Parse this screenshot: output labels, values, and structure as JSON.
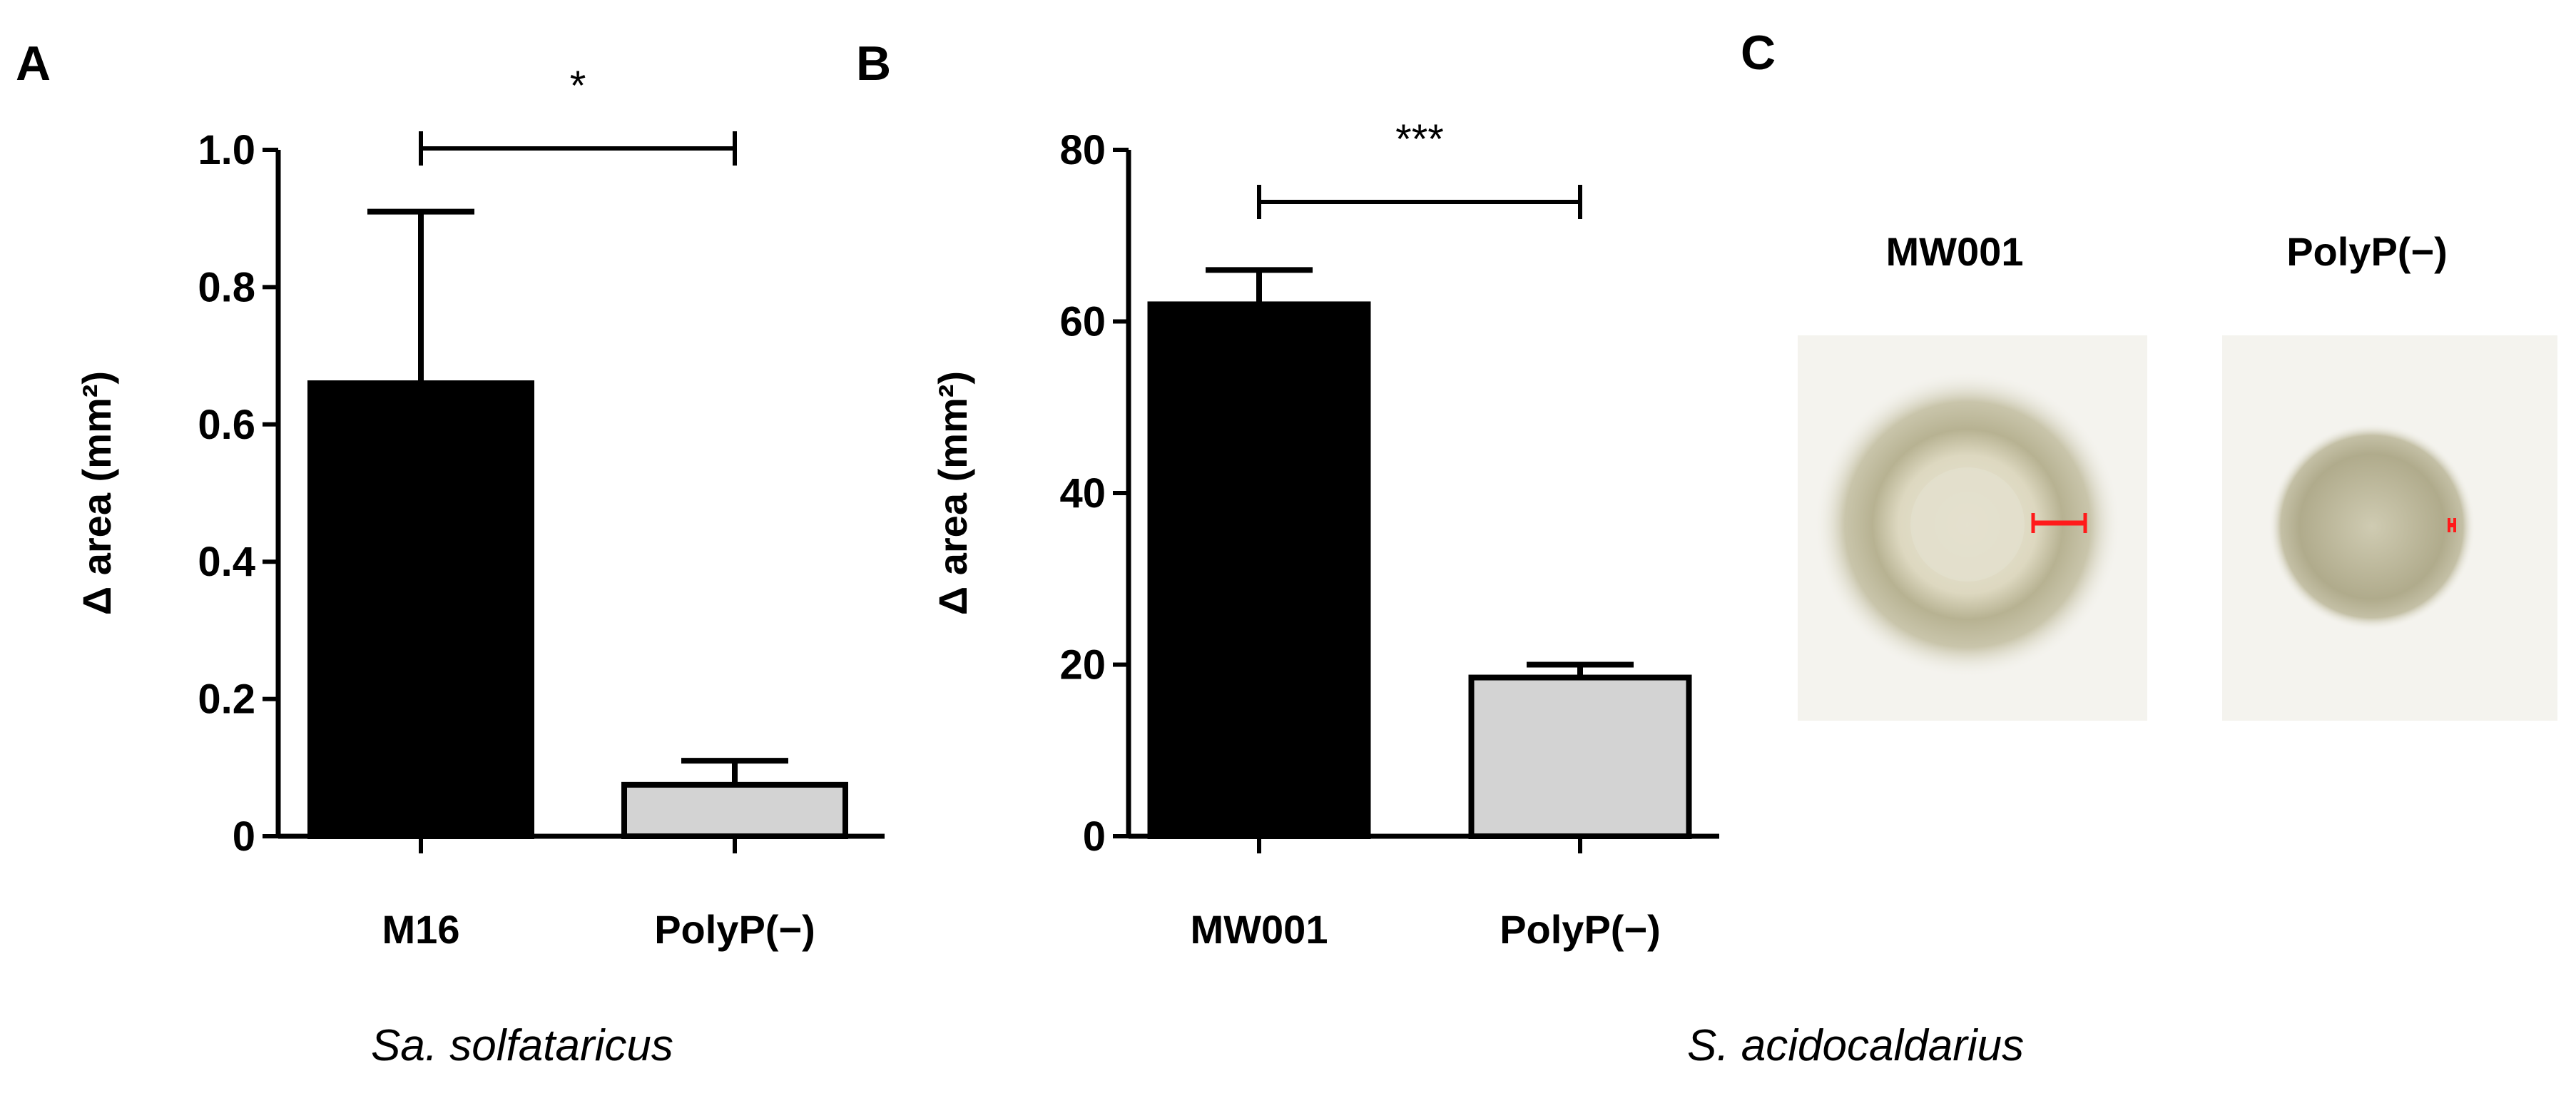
{
  "panels": {
    "a": {
      "letter": "A",
      "organism": "Sa. solfataricus"
    },
    "b": {
      "letter": "B",
      "organism": "S. acidocaldarius"
    },
    "c": {
      "letter": "C",
      "images": [
        {
          "label": "MW001"
        },
        {
          "label": "PolyP(−)"
        }
      ]
    }
  },
  "chart_data": [
    {
      "type": "bar",
      "panel": "A",
      "categories": [
        "M16",
        "PolyP(−)"
      ],
      "values": [
        0.66,
        0.075
      ],
      "error_upper": [
        0.91,
        0.11
      ],
      "bar_colors": [
        "#000000",
        "#d3d3d3"
      ],
      "ylabel": "Δ area (mm²)",
      "ylim": [
        0,
        1.0
      ],
      "yticks": [
        "0",
        "0.2",
        "0.4",
        "0.6",
        "0.8",
        "1.0"
      ],
      "significance": "*"
    },
    {
      "type": "bar",
      "panel": "B",
      "categories": [
        "MW001",
        "PolyP(−)"
      ],
      "values": [
        62,
        18.5
      ],
      "error_upper": [
        66,
        20
      ],
      "bar_colors": [
        "#000000",
        "#d3d3d3"
      ],
      "ylabel": "Δ area (mm²)",
      "ylim": [
        0,
        80
      ],
      "yticks": [
        "0",
        "20",
        "40",
        "60",
        "80"
      ],
      "significance": "***"
    }
  ]
}
